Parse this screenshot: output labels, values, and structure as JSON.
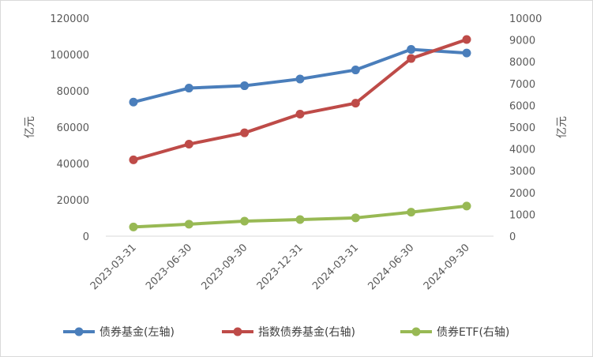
{
  "chart_data": {
    "type": "line",
    "categories": [
      "2023-03-31",
      "2023-06-30",
      "2023-09-30",
      "2023-12-31",
      "2024-03-31",
      "2024-06-30",
      "2024-09-30"
    ],
    "series": [
      {
        "name": "债券基金(左轴)",
        "axis": "left",
        "color": "#4a7ebb",
        "values": [
          73800,
          81500,
          82800,
          86500,
          91500,
          102800,
          100800
        ]
      },
      {
        "name": "指数债券基金(右轴)",
        "axis": "right",
        "color": "#be4b48",
        "values": [
          3500,
          4220,
          4740,
          5600,
          6100,
          8150,
          9020
        ]
      },
      {
        "name": "债券ETF(右轴)",
        "axis": "right",
        "color": "#98b954",
        "values": [
          420,
          550,
          690,
          760,
          840,
          1100,
          1380
        ]
      }
    ],
    "y_left": {
      "label": "亿元",
      "min": 0,
      "max": 120000,
      "step": 20000,
      "tick_labels": [
        "0",
        "20000",
        "40000",
        "60000",
        "80000",
        "100000",
        "120000"
      ]
    },
    "y_right": {
      "label": "亿元",
      "min": 0,
      "max": 10000,
      "step": 1000,
      "tick_labels": [
        "0",
        "1000",
        "2000",
        "3000",
        "4000",
        "5000",
        "6000",
        "7000",
        "8000",
        "9000",
        "10000"
      ]
    },
    "grid": false,
    "legend_position": "bottom"
  }
}
